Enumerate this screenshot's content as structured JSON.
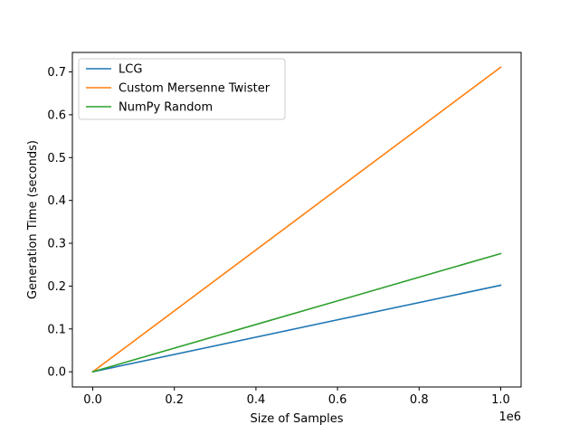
{
  "chart_data": {
    "type": "line",
    "title": "",
    "xlabel": "Size of Samples",
    "ylabel": "Generation Time (seconds)",
    "x_offset_label": "1e6",
    "xlim": [
      -50000,
      1050000
    ],
    "ylim": [
      -0.0355,
      0.7455
    ],
    "x_ticks": [
      0,
      200000,
      400000,
      600000,
      800000,
      1000000
    ],
    "x_tick_labels": [
      "0.0",
      "0.2",
      "0.4",
      "0.6",
      "0.8",
      "1.0"
    ],
    "y_ticks": [
      0.0,
      0.1,
      0.2,
      0.3,
      0.4,
      0.5,
      0.6,
      0.7
    ],
    "y_tick_labels": [
      "0.0",
      "0.1",
      "0.2",
      "0.3",
      "0.4",
      "0.5",
      "0.6",
      "0.7"
    ],
    "grid": false,
    "legend_position": "top-left",
    "series": [
      {
        "name": "LCG",
        "color": "#1f77b4",
        "x": [
          0,
          1000000
        ],
        "y": [
          0.0,
          0.202
        ]
      },
      {
        "name": "Custom Mersenne Twister",
        "color": "#ff7f0e",
        "x": [
          0,
          1000000
        ],
        "y": [
          0.0,
          0.711
        ]
      },
      {
        "name": "NumPy Random",
        "color": "#2ca02c",
        "x": [
          0,
          1000000
        ],
        "y": [
          0.0,
          0.276
        ]
      }
    ]
  }
}
